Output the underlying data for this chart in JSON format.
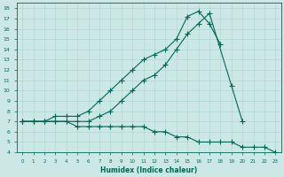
{
  "xlabel": "Humidex (Indice chaleur)",
  "background_color": "#cce8e4",
  "grid_color": "#aad4d0",
  "line_color": "#006655",
  "xlim": [
    -0.5,
    23.5
  ],
  "ylim": [
    4,
    18.5
  ],
  "xticks": [
    0,
    1,
    2,
    3,
    4,
    5,
    6,
    7,
    8,
    9,
    10,
    11,
    12,
    13,
    14,
    15,
    16,
    17,
    18,
    19,
    20,
    21,
    22,
    23
  ],
  "yticks": [
    4,
    5,
    6,
    7,
    8,
    9,
    10,
    11,
    12,
    13,
    14,
    15,
    16,
    17,
    18
  ],
  "series": [
    {
      "x": [
        0,
        1,
        2,
        3,
        4,
        5,
        6,
        7,
        8,
        9,
        10,
        11,
        12,
        13,
        14,
        15,
        16,
        17,
        18,
        19,
        20,
        21,
        22,
        23
      ],
      "y": [
        7,
        7,
        7,
        7.5,
        7.5,
        7.5,
        8,
        9,
        10,
        11,
        12,
        13,
        13.5,
        14,
        15,
        17.2,
        17.7,
        16.5,
        14.5,
        null,
        null,
        null,
        null,
        null
      ]
    },
    {
      "x": [
        0,
        1,
        2,
        3,
        4,
        5,
        6,
        7,
        8,
        9,
        10,
        11,
        12,
        13,
        14,
        15,
        16,
        17,
        18,
        19,
        20,
        21,
        22,
        23
      ],
      "y": [
        7,
        7,
        7,
        7,
        7,
        7,
        7,
        7.5,
        8,
        9,
        10,
        11,
        11.5,
        12.5,
        14,
        15.5,
        16.5,
        17.5,
        null,
        10.5,
        7,
        null,
        null,
        null
      ]
    },
    {
      "x": [
        0,
        1,
        2,
        3,
        4,
        5,
        6,
        7,
        8,
        9,
        10,
        11,
        12,
        13,
        14,
        15,
        16,
        17,
        18,
        19,
        20,
        21,
        22,
        23
      ],
      "y": [
        7,
        7,
        7,
        7,
        7,
        6.5,
        6.5,
        6.5,
        6.5,
        6.5,
        6.5,
        6.5,
        6,
        6,
        5.5,
        5.5,
        5,
        5,
        5,
        5,
        4.5,
        4.5,
        4.5,
        4
      ]
    }
  ]
}
